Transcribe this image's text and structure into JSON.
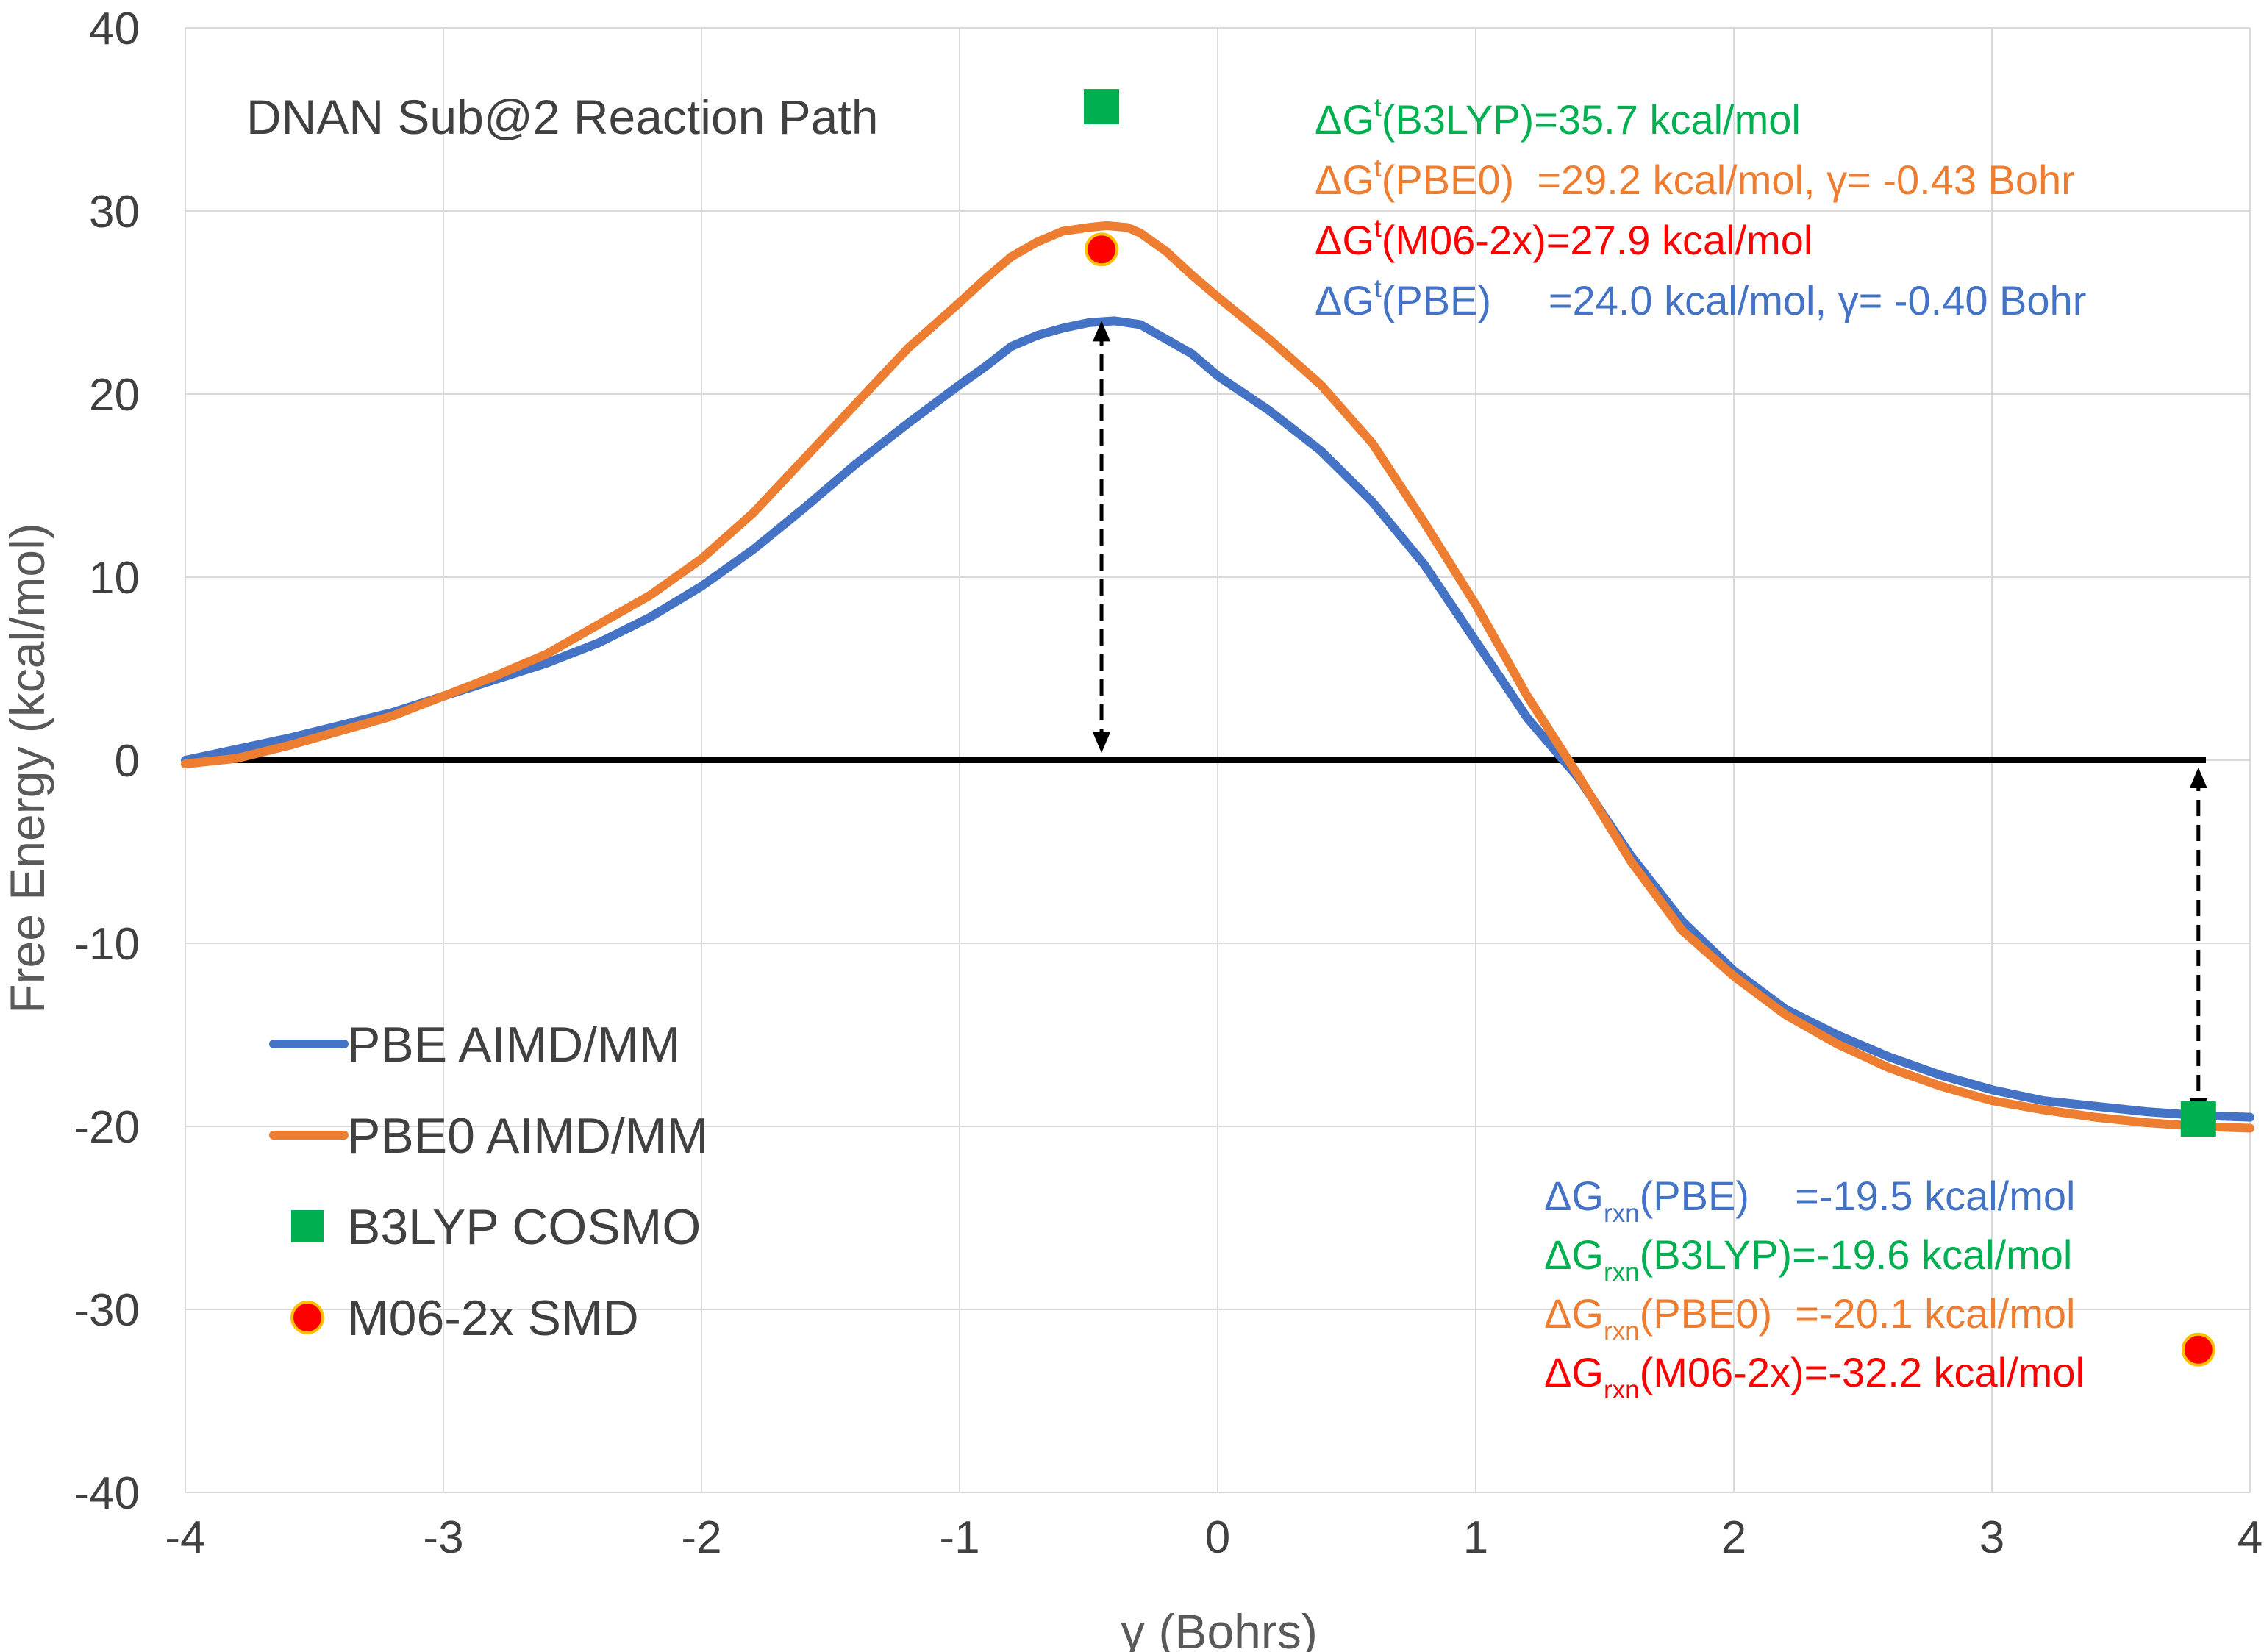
{
  "chart_data": {
    "type": "line",
    "title": "DNAN Sub@2 Reaction Path",
    "xlabel": "γ (Bohrs)",
    "ylabel": "Free Energy (kcal/mol)",
    "xlim": [
      -4,
      4
    ],
    "ylim": [
      -40,
      40
    ],
    "xticks": [
      "-4",
      "-3",
      "-2",
      "-1",
      "0",
      "1",
      "2",
      "3",
      "4"
    ],
    "yticks": [
      "-40",
      "-30",
      "-20",
      "-10",
      "0",
      "10",
      "20",
      "30",
      "40"
    ],
    "grid": true,
    "legend_position": "bottom-left",
    "series": [
      {
        "name": "PBE AIMD/MM",
        "kind": "line",
        "color": "#4472C4",
        "x": [
          -4.0,
          -3.8,
          -3.6,
          -3.4,
          -3.2,
          -3.0,
          -2.8,
          -2.6,
          -2.4,
          -2.2,
          -2.0,
          -1.8,
          -1.6,
          -1.4,
          -1.2,
          -1.0,
          -0.9,
          -0.8,
          -0.7,
          -0.6,
          -0.5,
          -0.4,
          -0.3,
          -0.2,
          -0.1,
          0.0,
          0.2,
          0.4,
          0.6,
          0.8,
          1.0,
          1.2,
          1.4,
          1.6,
          1.8,
          2.0,
          2.2,
          2.4,
          2.6,
          2.8,
          3.0,
          3.2,
          3.4,
          3.6,
          3.8,
          4.0
        ],
        "y": [
          0.0,
          0.6,
          1.2,
          1.9,
          2.6,
          3.5,
          4.4,
          5.3,
          6.4,
          7.8,
          9.5,
          11.5,
          13.8,
          16.2,
          18.4,
          20.5,
          21.5,
          22.6,
          23.2,
          23.6,
          23.9,
          24.0,
          23.8,
          23.0,
          22.2,
          21.0,
          19.1,
          16.9,
          14.1,
          10.7,
          6.5,
          2.3,
          -1.0,
          -5.2,
          -8.8,
          -11.5,
          -13.6,
          -15.0,
          -16.2,
          -17.2,
          -18.0,
          -18.6,
          -18.9,
          -19.2,
          -19.4,
          -19.5
        ]
      },
      {
        "name": "PBE0 AIMD/MM",
        "kind": "line",
        "color": "#ED7D31",
        "x": [
          -4.0,
          -3.8,
          -3.6,
          -3.4,
          -3.2,
          -3.0,
          -2.8,
          -2.6,
          -2.4,
          -2.2,
          -2.0,
          -1.8,
          -1.6,
          -1.4,
          -1.2,
          -1.0,
          -0.9,
          -0.8,
          -0.7,
          -0.6,
          -0.5,
          -0.43,
          -0.35,
          -0.3,
          -0.2,
          -0.1,
          0.0,
          0.2,
          0.4,
          0.6,
          0.8,
          1.0,
          1.2,
          1.4,
          1.6,
          1.8,
          2.0,
          2.2,
          2.4,
          2.6,
          2.8,
          3.0,
          3.2,
          3.4,
          3.6,
          3.8,
          4.0
        ],
        "y": [
          -0.2,
          0.1,
          0.8,
          1.6,
          2.4,
          3.5,
          4.6,
          5.8,
          7.4,
          9.0,
          11.0,
          13.5,
          16.5,
          19.5,
          22.5,
          25.0,
          26.3,
          27.5,
          28.3,
          28.9,
          29.1,
          29.2,
          29.1,
          28.8,
          27.8,
          26.5,
          25.3,
          23.0,
          20.5,
          17.3,
          13.0,
          8.5,
          3.5,
          -0.9,
          -5.5,
          -9.3,
          -11.8,
          -13.9,
          -15.5,
          -16.8,
          -17.8,
          -18.6,
          -19.1,
          -19.5,
          -19.8,
          -20.0,
          -20.1
        ]
      },
      {
        "name": "B3LYP COSMO",
        "kind": "square",
        "color": "#00B050",
        "x": [
          -0.45,
          3.8
        ],
        "y": [
          35.7,
          -19.6
        ]
      },
      {
        "name": "M06-2x SMD",
        "kind": "circle",
        "color": "#FF0000",
        "edge": "#FFC000",
        "x": [
          -0.45,
          3.8
        ],
        "y": [
          27.9,
          -32.2
        ]
      }
    ],
    "zero_line": 0,
    "arrows": [
      {
        "x": -0.45,
        "y1": 0,
        "y2": 24.0
      },
      {
        "x": 3.8,
        "y1": 0,
        "y2": -19.6
      }
    ],
    "annotations_ts": [
      {
        "pre": "ΔG",
        "sup": "t",
        "sub": "",
        "rest": "(B3LYP)=35.7 kcal/mol",
        "color": "#00B050"
      },
      {
        "pre": "ΔG",
        "sup": "t",
        "sub": "",
        "rest": "(PBE0)  =29.2 kcal/mol, γ= -0.43 Bohr",
        "color": "#ED7D31"
      },
      {
        "pre": "ΔG",
        "sup": "t",
        "sub": "",
        "rest": "(M06-2x)=27.9 kcal/mol",
        "color": "#FF0000"
      },
      {
        "pre": "ΔG",
        "sup": "t",
        "sub": "",
        "rest": "(PBE)     =24.0 kcal/mol, γ= -0.40 Bohr",
        "color": "#4472C4"
      }
    ],
    "annotations_rxn": [
      {
        "pre": "ΔG",
        "sup": "",
        "sub": "rxn",
        "rest": "(PBE)    =-19.5 kcal/mol",
        "color": "#4472C4"
      },
      {
        "pre": "ΔG",
        "sup": "",
        "sub": "rxn",
        "rest": "(B3LYP)=-19.6 kcal/mol",
        "color": "#00B050"
      },
      {
        "pre": "ΔG",
        "sup": "",
        "sub": "rxn",
        "rest": "(PBE0)  =-20.1 kcal/mol",
        "color": "#ED7D31"
      },
      {
        "pre": "ΔG",
        "sup": "",
        "sub": "rxn",
        "rest": "(M06-2x)=-32.2 kcal/mol",
        "color": "#FF0000"
      }
    ]
  }
}
